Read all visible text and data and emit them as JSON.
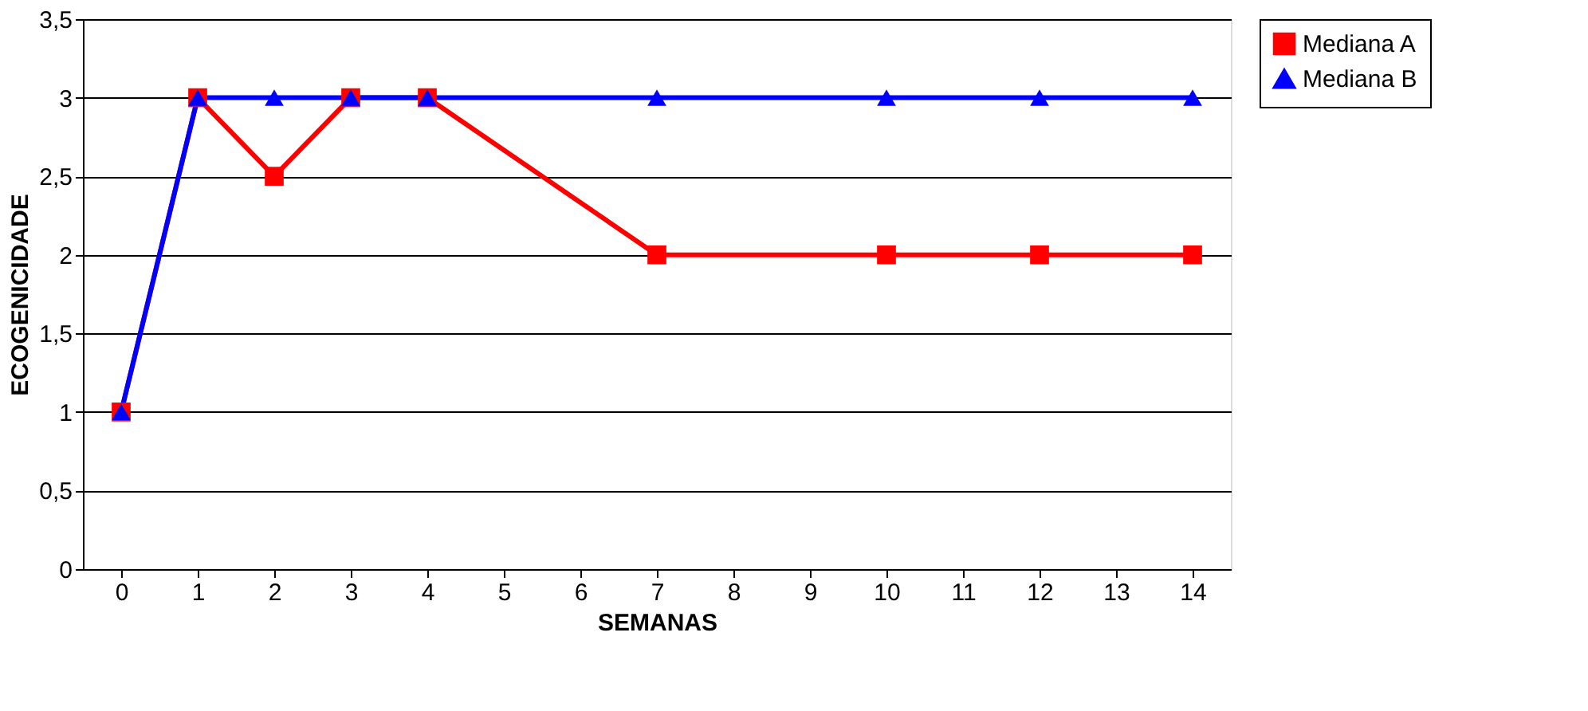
{
  "chart_data": {
    "type": "line",
    "xlabel": "SEMANAS",
    "ylabel": "ECOGENICIDADE",
    "x": [
      0,
      1,
      2,
      3,
      4,
      7,
      10,
      12,
      14
    ],
    "series": [
      {
        "name": "Mediana A",
        "color": "#ff0000",
        "marker": "square",
        "values": [
          1,
          3,
          2.5,
          3,
          3,
          2,
          2,
          2,
          2
        ]
      },
      {
        "name": "Mediana B",
        "color": "#0000ff",
        "marker": "triangle",
        "values": [
          1,
          3,
          3,
          3,
          3,
          3,
          3,
          3,
          3
        ]
      }
    ],
    "xlim": [
      -0.5,
      14.5
    ],
    "xticks": [
      0,
      1,
      2,
      3,
      4,
      5,
      6,
      7,
      8,
      9,
      10,
      11,
      12,
      13,
      14
    ],
    "ylim": [
      0,
      3.5
    ],
    "yticks": [
      0,
      {
        "value": 0.5,
        "label": "0,5"
      },
      1,
      {
        "value": 1.5,
        "label": "1,5"
      },
      2,
      {
        "value": 2.5,
        "label": "2,5"
      },
      3,
      {
        "value": 3.5,
        "label": "3,5"
      }
    ],
    "grid": "y",
    "legend": "right",
    "line_style": "solid"
  }
}
